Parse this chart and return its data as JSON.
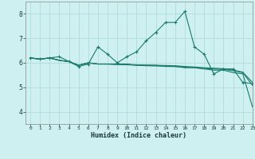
{
  "xlabel": "Humidex (Indice chaleur)",
  "background_color": "#cff0f0",
  "grid_color": "#aad8d8",
  "line_color": "#1a7a6e",
  "xlim": [
    -0.5,
    23
  ],
  "ylim": [
    3.5,
    8.5
  ],
  "yticks": [
    4,
    5,
    6,
    7,
    8
  ],
  "xticks": [
    0,
    1,
    2,
    3,
    4,
    5,
    6,
    7,
    8,
    9,
    10,
    11,
    12,
    13,
    14,
    15,
    16,
    17,
    18,
    19,
    20,
    21,
    22,
    23
  ],
  "series": [
    {
      "x": [
        0,
        1,
        2,
        3,
        4,
        5,
        6,
        7,
        8,
        9,
        10,
        11,
        12,
        13,
        14,
        15,
        16,
        17,
        18,
        19,
        20,
        21,
        22,
        23
      ],
      "y": [
        6.2,
        6.15,
        6.2,
        6.25,
        6.05,
        5.85,
        5.95,
        6.65,
        6.35,
        6.0,
        6.25,
        6.45,
        6.9,
        7.25,
        7.65,
        7.65,
        8.1,
        6.65,
        6.35,
        5.55,
        5.75,
        5.75,
        5.2,
        5.15
      ],
      "marker": "+"
    },
    {
      "x": [
        0,
        1,
        2,
        3,
        4,
        5,
        6,
        7,
        8,
        9,
        10,
        11,
        12,
        13,
        14,
        15,
        16,
        17,
        18,
        19,
        20,
        21,
        22,
        23
      ],
      "y": [
        6.2,
        6.15,
        6.2,
        6.1,
        6.05,
        5.9,
        6.0,
        5.95,
        5.95,
        5.95,
        5.95,
        5.9,
        5.9,
        5.9,
        5.85,
        5.85,
        5.8,
        5.8,
        5.75,
        5.7,
        5.7,
        5.6,
        5.55,
        4.2
      ],
      "marker": null
    },
    {
      "x": [
        0,
        1,
        2,
        3,
        4,
        5,
        6,
        7,
        8,
        9,
        10,
        11,
        12,
        13,
        14,
        15,
        16,
        17,
        18,
        19,
        20,
        21,
        22,
        23
      ],
      "y": [
        6.2,
        6.15,
        6.2,
        6.1,
        6.05,
        5.9,
        6.0,
        5.95,
        5.95,
        5.93,
        5.92,
        5.9,
        5.88,
        5.87,
        5.86,
        5.85,
        5.82,
        5.8,
        5.77,
        5.75,
        5.73,
        5.68,
        5.6,
        5.08
      ],
      "marker": null
    },
    {
      "x": [
        0,
        1,
        2,
        3,
        4,
        5,
        6,
        7,
        8,
        9,
        10,
        11,
        12,
        13,
        14,
        15,
        16,
        17,
        18,
        19,
        20,
        21,
        22,
        23
      ],
      "y": [
        6.2,
        6.15,
        6.2,
        6.1,
        6.05,
        5.9,
        6.0,
        5.95,
        5.95,
        5.94,
        5.93,
        5.92,
        5.91,
        5.9,
        5.89,
        5.88,
        5.85,
        5.83,
        5.8,
        5.78,
        5.76,
        5.7,
        5.62,
        5.2
      ],
      "marker": null
    }
  ]
}
